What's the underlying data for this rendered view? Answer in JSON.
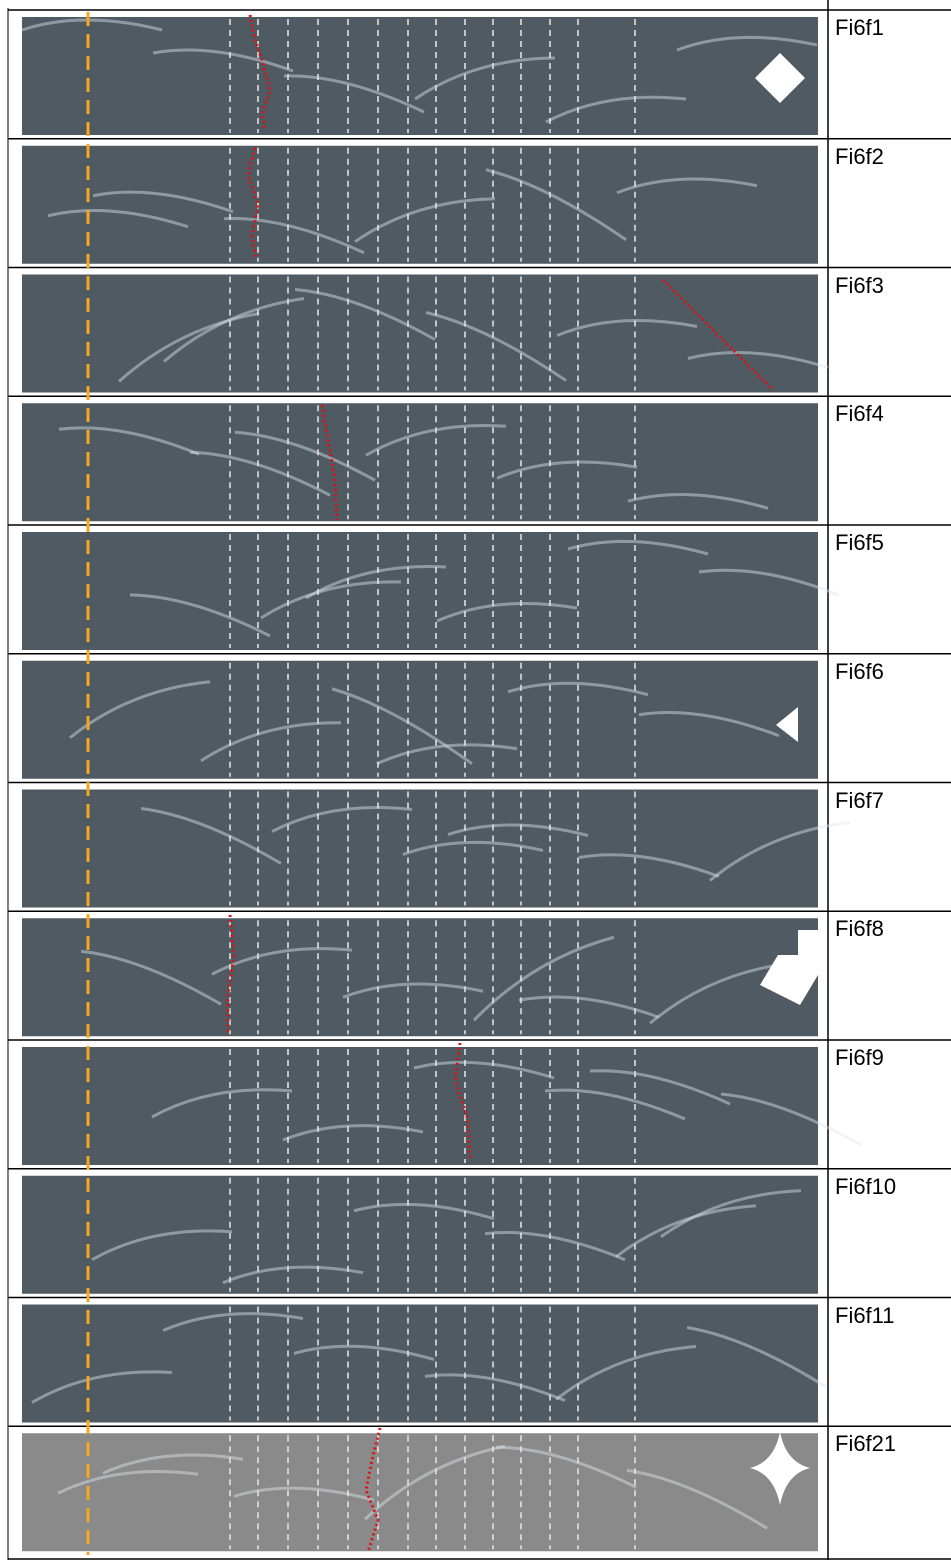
{
  "labels": [
    "Fi6f1",
    "Fi6f2",
    "Fi6f3",
    "Fi6f4",
    "Fi6f5",
    "Fi6f6",
    "Fi6f7",
    "Fi6f8",
    "Fi6f9",
    "Fi6f10",
    "Fi6f11",
    "Fi6f21"
  ]
}
